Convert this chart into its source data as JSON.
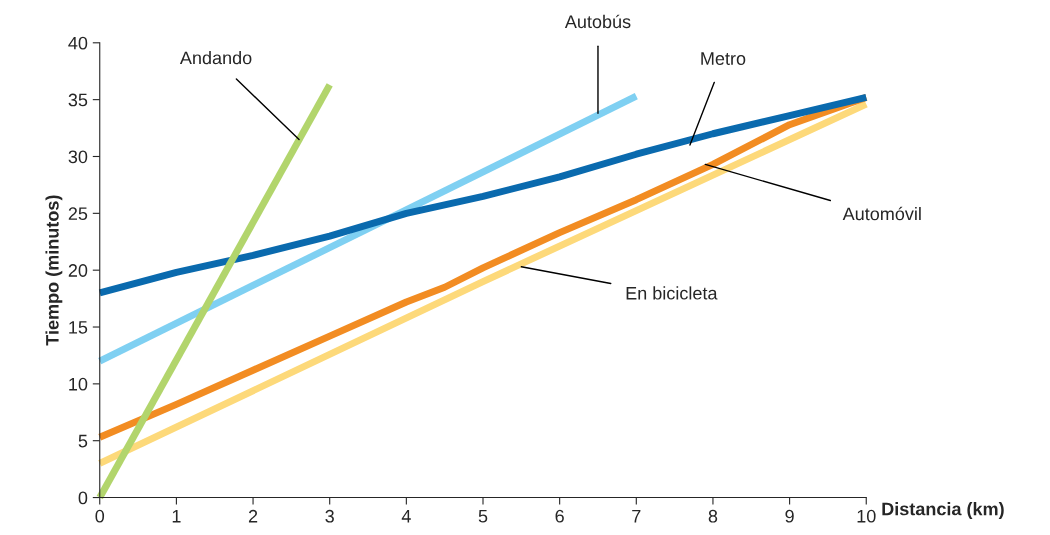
{
  "chart_data": {
    "type": "line",
    "xlabel": "Distancia (km)",
    "ylabel": "Tiempo (minutos)",
    "xlim": [
      0,
      10
    ],
    "ylim": [
      0,
      40
    ],
    "xticks": [
      0,
      1,
      2,
      3,
      4,
      5,
      6,
      7,
      8,
      9,
      10
    ],
    "yticks": [
      0,
      5,
      10,
      15,
      20,
      25,
      30,
      35,
      40
    ],
    "grid": false,
    "legend": false,
    "marker": "none",
    "line_style": "solid",
    "series": [
      {
        "color": "#fdd97a",
        "x": [
          0,
          5,
          10
        ],
        "values": [
          3,
          19,
          34.6
        ]
      },
      {
        "color": "#f28c22",
        "x": [
          0,
          1,
          2,
          3,
          4,
          4.5,
          5,
          6,
          7,
          8,
          9,
          10
        ],
        "values": [
          5.3,
          8.2,
          11.2,
          14.2,
          17.2,
          18.5,
          20.2,
          23.3,
          26.2,
          29.3,
          32.8,
          35.2
        ]
      },
      {
        "color": "#7fd0f2",
        "x": [
          0,
          7
        ],
        "values": [
          12,
          35.3
        ]
      },
      {
        "color": "#0a6aae",
        "x": [
          0,
          1,
          2,
          3,
          4,
          5,
          6,
          7,
          8,
          9,
          10
        ],
        "values": [
          18,
          19.8,
          21.3,
          23,
          25,
          26.5,
          28.2,
          30.2,
          32,
          33.6,
          35.2
        ]
      },
      {
        "color": "#b2d56c",
        "x": [
          0,
          3
        ],
        "values": [
          0,
          36.3
        ]
      }
    ],
    "annotations": [
      {
        "text": "Andando",
        "x": 2.6,
        "y": 31.5
      },
      {
        "text": "Autobús",
        "x": 6.5,
        "y": 33.8
      },
      {
        "text": "Metro",
        "x": 7.7,
        "y": 31
      },
      {
        "text": "Automóvil",
        "x": 7.9,
        "y": 29.3
      },
      {
        "text": "En bicicleta",
        "x": 5.5,
        "y": 20.3
      }
    ]
  }
}
